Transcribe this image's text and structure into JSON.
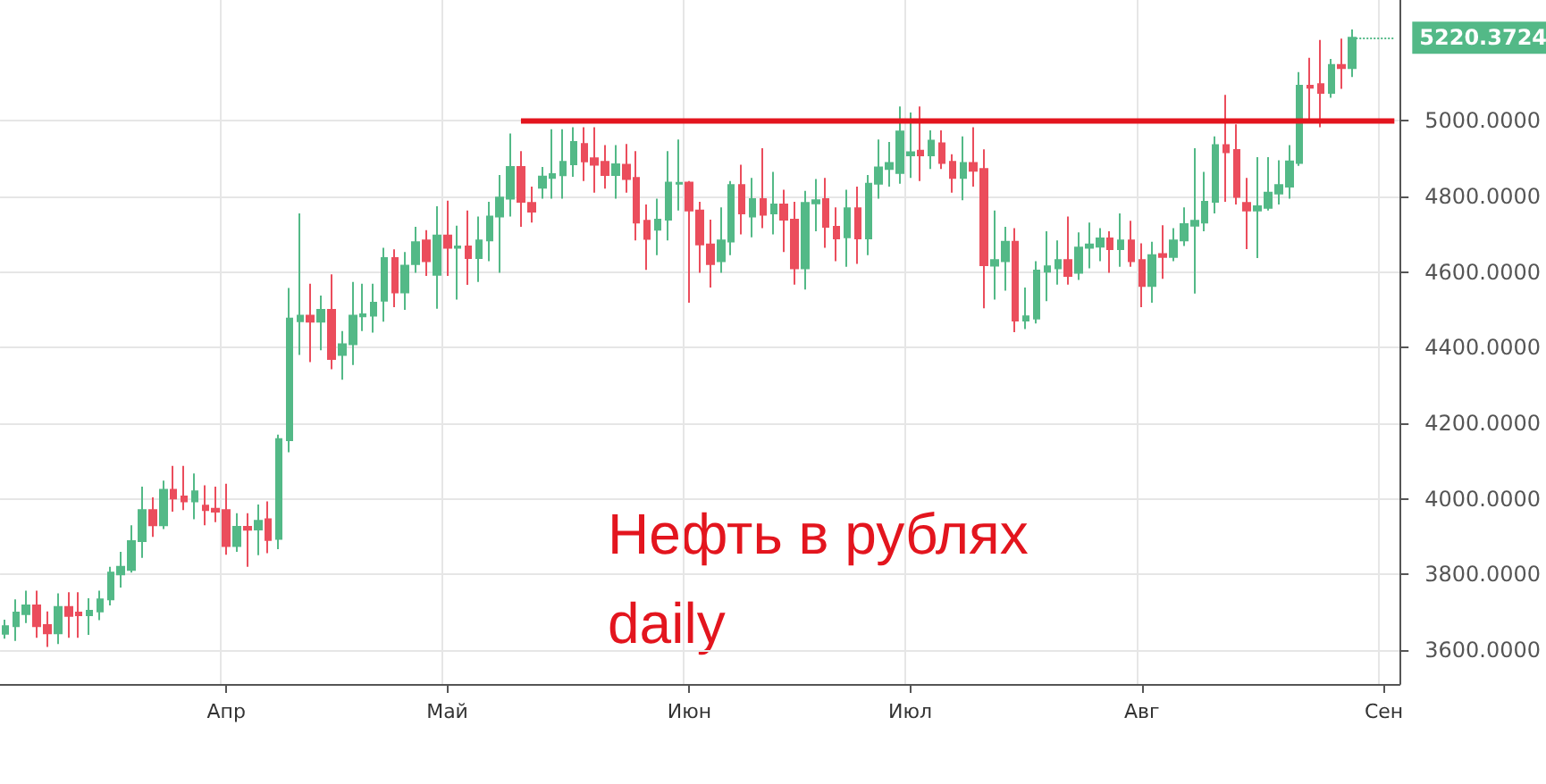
{
  "chart_data": {
    "type": "candlestick",
    "categories": [
      null,
      null,
      null,
      null,
      null,
      null,
      null,
      null,
      null,
      null,
      null,
      null,
      null,
      null,
      null,
      null,
      null,
      null,
      null,
      null,
      null,
      "Апр",
      null,
      null,
      null,
      null,
      null,
      null,
      null,
      null,
      null,
      null,
      null,
      null,
      null,
      null,
      null,
      null,
      null,
      null,
      null,
      null,
      "Май",
      null,
      null,
      null,
      null,
      null,
      null,
      null,
      null,
      null,
      null,
      null,
      null,
      null,
      null,
      null,
      null,
      null,
      null,
      null,
      null,
      null,
      null,
      "Июн",
      null,
      null,
      null,
      null,
      null,
      null,
      null,
      null,
      null,
      null,
      null,
      null,
      null,
      null,
      null,
      null,
      null,
      null,
      null,
      null,
      "Июл",
      null,
      null,
      null,
      null,
      null,
      null,
      null,
      null,
      null,
      null,
      null,
      null,
      null,
      null,
      null,
      null,
      null,
      null,
      null,
      null,
      null,
      "Авг",
      null,
      null,
      null,
      null,
      null,
      null,
      null,
      null,
      null,
      null,
      null,
      null,
      null,
      null,
      null,
      null,
      null,
      null,
      null,
      null,
      null,
      null,
      "Сен",
      null
    ],
    "series": [
      {
        "ohlc": [
          [
            3643,
            3680,
            3630,
            3663
          ],
          [
            3663,
            3734,
            3624,
            3699
          ],
          [
            3695,
            3757,
            3671,
            3718
          ],
          [
            3718,
            3757,
            3632,
            3663
          ],
          [
            3666,
            3702,
            3608,
            3644
          ],
          [
            3644,
            3750,
            3616,
            3714
          ],
          [
            3714,
            3753,
            3632,
            3690
          ],
          [
            3699,
            3753,
            3632,
            3692
          ],
          [
            3692,
            3737,
            3640,
            3704
          ],
          [
            3702,
            3757,
            3679,
            3734
          ],
          [
            3734,
            3820,
            3718,
            3805
          ],
          [
            3800,
            3860,
            3765,
            3820
          ],
          [
            3812,
            3930,
            3805,
            3888
          ],
          [
            3888,
            4032,
            3844,
            3970
          ],
          [
            3970,
            4004,
            3899,
            3930
          ],
          [
            3930,
            4048,
            3920,
            4024
          ],
          [
            4024,
            4087,
            3966,
            4001
          ],
          [
            4006,
            4087,
            3970,
            3993
          ],
          [
            3993,
            4067,
            3946,
            4020
          ],
          [
            3982,
            4036,
            3930,
            3970
          ],
          [
            3974,
            4032,
            3938,
            3966
          ],
          [
            3970,
            4040,
            3852,
            3875
          ],
          [
            3875,
            3962,
            3860,
            3926
          ],
          [
            3926,
            3962,
            3820,
            3918
          ],
          [
            3919,
            3985,
            3851,
            3942
          ],
          [
            3946,
            3993,
            3856,
            3891
          ],
          [
            3894,
            4170,
            3867,
            4158
          ],
          [
            4155,
            4558,
            4123,
            4477
          ],
          [
            4470,
            4755,
            4381,
            4485
          ],
          [
            4485,
            4569,
            4362,
            4469
          ],
          [
            4469,
            4538,
            4393,
            4500
          ],
          [
            4500,
            4594,
            4343,
            4370
          ],
          [
            4381,
            4444,
            4315,
            4409
          ],
          [
            4409,
            4574,
            4354,
            4485
          ],
          [
            4483,
            4569,
            4444,
            4488
          ],
          [
            4485,
            4569,
            4440,
            4519
          ],
          [
            4524,
            4664,
            4469,
            4637
          ],
          [
            4637,
            4660,
            4507,
            4546
          ],
          [
            4546,
            4653,
            4500,
            4617
          ],
          [
            4621,
            4720,
            4598,
            4679
          ],
          [
            4684,
            4711,
            4590,
            4629
          ],
          [
            4593,
            4774,
            4503,
            4697
          ],
          [
            4697,
            4789,
            4590,
            4664
          ],
          [
            4664,
            4723,
            4527,
            4668
          ],
          [
            4668,
            4763,
            4566,
            4637
          ],
          [
            4637,
            4747,
            4574,
            4684
          ],
          [
            4684,
            4786,
            4629,
            4747
          ],
          [
            4747,
            4857,
            4598,
            4797
          ],
          [
            4794,
            4967,
            4747,
            4878
          ],
          [
            4878,
            4920,
            4720,
            4786
          ],
          [
            4783,
            4826,
            4731,
            4760
          ],
          [
            4823,
            4878,
            4794,
            4853
          ],
          [
            4849,
            4978,
            4794,
            4859
          ],
          [
            4856,
            4978,
            4794,
            4892
          ],
          [
            4885,
            4983,
            4852,
            4944
          ],
          [
            4939,
            4983,
            4841,
            4893
          ],
          [
            4901,
            4983,
            4810,
            4884
          ],
          [
            4892,
            4936,
            4821,
            4857
          ],
          [
            4857,
            4936,
            4794,
            4885
          ],
          [
            4884,
            4939,
            4810,
            4846
          ],
          [
            4849,
            4920,
            4684,
            4731
          ],
          [
            4736,
            4779,
            4606,
            4688
          ],
          [
            4712,
            4794,
            4645,
            4739
          ],
          [
            4739,
            4920,
            4684,
            4837
          ],
          [
            4834,
            4951,
            4763,
            4836
          ],
          [
            4837,
            4841,
            4519,
            4763
          ],
          [
            4763,
            4786,
            4598,
            4673
          ],
          [
            4673,
            4739,
            4559,
            4621
          ],
          [
            4629,
            4771,
            4598,
            4684
          ],
          [
            4681,
            4841,
            4645,
            4830
          ],
          [
            4830,
            4884,
            4700,
            4755
          ],
          [
            4747,
            4849,
            4692,
            4793
          ],
          [
            4793,
            4928,
            4716,
            4752
          ],
          [
            4755,
            4865,
            4700,
            4779
          ],
          [
            4779,
            4818,
            4653,
            4739
          ],
          [
            4739,
            4786,
            4567,
            4610
          ],
          [
            4610,
            4815,
            4554,
            4783
          ],
          [
            4782,
            4846,
            4708,
            4790
          ],
          [
            4793,
            4849,
            4664,
            4720
          ],
          [
            4720,
            4771,
            4629,
            4689
          ],
          [
            4692,
            4818,
            4614,
            4769
          ],
          [
            4769,
            4826,
            4622,
            4689
          ],
          [
            4689,
            4857,
            4645,
            4834
          ],
          [
            4834,
            4951,
            4794,
            4877
          ],
          [
            4873,
            4944,
            4826,
            4889
          ],
          [
            4862,
            5038,
            4834,
            4972
          ],
          [
            4909,
            5022,
            4849,
            4917
          ],
          [
            4921,
            5038,
            4841,
            4909
          ],
          [
            4909,
            4975,
            4873,
            4948
          ],
          [
            4941,
            4975,
            4873,
            4889
          ],
          [
            4892,
            4912,
            4810,
            4849
          ],
          [
            4849,
            4959,
            4790,
            4889
          ],
          [
            4889,
            4983,
            4826,
            4868
          ],
          [
            4873,
            4925,
            4504,
            4618
          ],
          [
            4617,
            4763,
            4527,
            4632
          ],
          [
            4629,
            4720,
            4551,
            4680
          ],
          [
            4680,
            4716,
            4441,
            4472
          ],
          [
            4472,
            4559,
            4449,
            4483
          ],
          [
            4477,
            4629,
            4464,
            4604
          ],
          [
            4601,
            4708,
            4523,
            4615
          ],
          [
            4610,
            4684,
            4567,
            4632
          ],
          [
            4632,
            4747,
            4567,
            4590
          ],
          [
            4598,
            4705,
            4579,
            4665
          ],
          [
            4664,
            4731,
            4610,
            4673
          ],
          [
            4667,
            4716,
            4629,
            4689
          ],
          [
            4689,
            4708,
            4598,
            4661
          ],
          [
            4661,
            4755,
            4614,
            4684
          ],
          [
            4684,
            4736,
            4614,
            4629
          ],
          [
            4632,
            4676,
            4507,
            4563
          ],
          [
            4563,
            4680,
            4519,
            4645
          ],
          [
            4648,
            4724,
            4582,
            4640
          ],
          [
            4640,
            4716,
            4629,
            4684
          ],
          [
            4684,
            4771,
            4669,
            4727
          ],
          [
            4723,
            4928,
            4543,
            4736
          ],
          [
            4731,
            4865,
            4708,
            4786
          ],
          [
            4786,
            4959,
            4755,
            4936
          ],
          [
            4936,
            5069,
            4786,
            4917
          ],
          [
            4923,
            4991,
            4779,
            4799
          ],
          [
            4783,
            4849,
            4661,
            4763
          ],
          [
            4763,
            4904,
            4637,
            4774
          ],
          [
            4770,
            4904,
            4763,
            4810
          ],
          [
            4808,
            4896,
            4779,
            4830
          ],
          [
            4826,
            4936,
            4794,
            4893
          ],
          [
            4889,
            5129,
            4881,
            5093
          ],
          [
            5093,
            5167,
            4998,
            5088
          ],
          [
            5097,
            5214,
            4983,
            5074
          ],
          [
            5074,
            5164,
            5061,
            5148
          ],
          [
            5148,
            5218,
            5085,
            5140
          ],
          [
            5140,
            5242,
            5116,
            5220.3724
          ],
          null,
          null,
          null,
          null
        ]
      },
      {
        "type": "line",
        "color": "#e3151e",
        "values": [
          null,
          null,
          null,
          null,
          null,
          null,
          null,
          null,
          null,
          null,
          null,
          null,
          null,
          null,
          null,
          null,
          null,
          null,
          null,
          null,
          null,
          null,
          null,
          null,
          null,
          null,
          null,
          null,
          null,
          null,
          null,
          null,
          null,
          null,
          null,
          null,
          null,
          null,
          null,
          null,
          null,
          null,
          null,
          null,
          null,
          null,
          null,
          null,
          null,
          5000,
          5000,
          5000,
          5000,
          5000,
          5000,
          5000,
          5000,
          5000,
          5000,
          5000,
          5000,
          5000,
          5000,
          5000,
          5000,
          5000,
          5000,
          5000,
          5000,
          5000,
          5000,
          5000,
          5000,
          5000,
          5000,
          5000,
          5000,
          5000,
          5000,
          5000,
          5000,
          5000,
          5000,
          5000,
          5000,
          5000,
          5000,
          5000,
          5000,
          5000,
          5000,
          5000,
          5000,
          5000,
          5000,
          5000,
          5000,
          5000,
          5000,
          5000,
          5000,
          5000,
          5000,
          5000,
          5000,
          5000,
          5000,
          5000,
          5000,
          5000,
          5000,
          5000,
          5000,
          5000,
          5000,
          5000,
          5000,
          5000,
          5000,
          5000,
          5000,
          5000,
          5000,
          5000,
          5000,
          5000,
          5000,
          5000,
          5000,
          5000,
          5000,
          5000,
          5000
        ]
      }
    ],
    "ylim": [
      3510,
      5320
    ],
    "yticks": [
      {
        "value": 3600,
        "label": "3600.0000"
      },
      {
        "value": 3800,
        "label": "3800.0000"
      },
      {
        "value": 4000,
        "label": "4000.0000"
      },
      {
        "value": 4200,
        "label": "4200.0000"
      },
      {
        "value": 4400,
        "label": "4400.0000"
      },
      {
        "value": 4600,
        "label": "4600.0000"
      },
      {
        "value": 4800,
        "label": "4800.0000"
      },
      {
        "value": 5000,
        "label": "5000.0000"
      }
    ],
    "grid": true,
    "ref_lines": [
      {
        "axis": "y",
        "value": 5220.3724,
        "label": "5220.3724",
        "color": "#53b987",
        "line_style": "dotted"
      }
    ],
    "annotations": [
      "Нефть в рублях",
      "daily"
    ]
  }
}
